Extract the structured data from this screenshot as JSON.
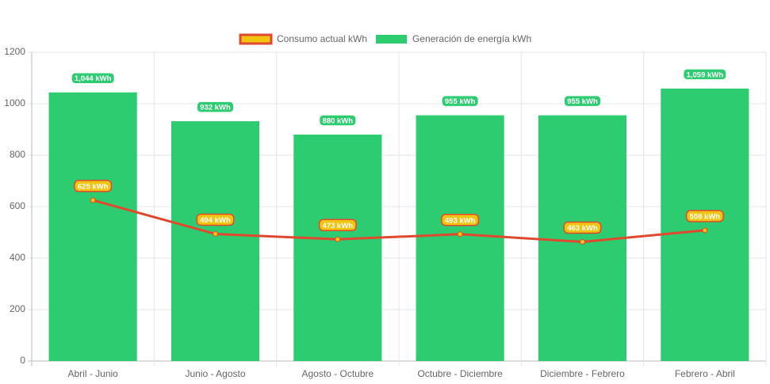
{
  "chart_data": {
    "type": "bar",
    "categories": [
      "Abril - Junio",
      "Junio - Agosto",
      "Agosto - Octubre",
      "Octubre - Diciembre",
      "Diciembre - Febrero",
      "Febrero - Abril"
    ],
    "series": [
      {
        "name": "Consumo actual kWh",
        "type": "line",
        "color": "#e0492f",
        "point_color": "#f1c40f",
        "values": [
          625,
          494,
          473,
          493,
          463,
          508
        ],
        "value_labels": [
          "625 kWh",
          "494 kWh",
          "473 kWh",
          "493 kWh",
          "463 kWh",
          "508 kWh"
        ]
      },
      {
        "name": "Generación de energía kWh",
        "type": "bar",
        "color": "#2ecc71",
        "values": [
          1044,
          932,
          880,
          955,
          955,
          1059
        ],
        "value_labels": [
          "1,044 kWh",
          "932 kWh",
          "880 kWh",
          "955 kWh",
          "955 kWh",
          "1,059 kWh"
        ]
      }
    ],
    "ylim": [
      0,
      1200
    ],
    "yticks": [
      0,
      200,
      400,
      600,
      800,
      1000,
      1200
    ],
    "grid": true,
    "legend": "top"
  }
}
